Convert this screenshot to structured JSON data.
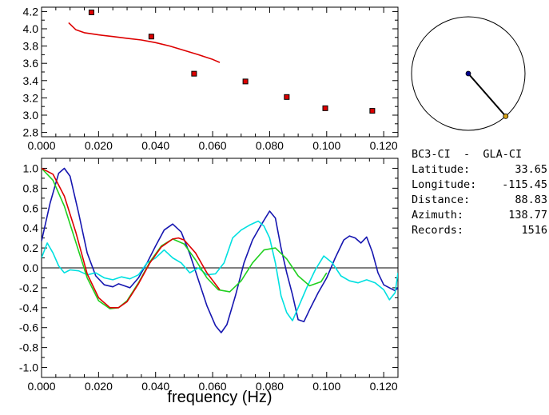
{
  "station": {
    "pair": "BC3-CI  -  GLA-CI",
    "rows": [
      {
        "label": "Latitude:",
        "value": "33.65"
      },
      {
        "label": "Longitude:",
        "value": "-115.45"
      },
      {
        "label": "Distance:",
        "value": "88.83"
      },
      {
        "label": "Azimuth:",
        "value": "138.77"
      },
      {
        "label": "Records:",
        "value": "1516"
      }
    ]
  },
  "compass": {
    "azimuth_deg": 138.77,
    "colors": {
      "center": "#00008b",
      "endpoint": "#d4a017"
    }
  },
  "chart_data": [
    {
      "type": "scatter",
      "xlim": [
        0.0,
        0.125
      ],
      "ylim": [
        2.75,
        4.25
      ],
      "xticks": [
        "0.000",
        "0.020",
        "0.040",
        "0.060",
        "0.080",
        "0.100",
        "0.120"
      ],
      "yticks": [
        "2.8",
        "3.0",
        "3.2",
        "3.4",
        "3.6",
        "3.8",
        "4.0",
        "4.2"
      ],
      "xtick_values": [
        0.0,
        0.02,
        0.04,
        0.06,
        0.08,
        0.1,
        0.12
      ],
      "ytick_values": [
        2.8,
        3.0,
        3.2,
        3.4,
        3.6,
        3.8,
        4.0,
        4.2
      ],
      "series": [
        {
          "kind": "points",
          "color": "#dd0000",
          "x": [
            0.0175,
            0.0385,
            0.0535,
            0.0715,
            0.086,
            0.0995,
            0.116
          ],
          "y": [
            4.19,
            3.91,
            3.48,
            3.39,
            3.21,
            3.08,
            3.05
          ]
        },
        {
          "kind": "line",
          "color": "#dd0000",
          "x": [
            0.0095,
            0.012,
            0.015,
            0.02,
            0.025,
            0.03,
            0.035,
            0.04,
            0.045,
            0.05,
            0.055,
            0.06,
            0.0625
          ],
          "y": [
            4.07,
            3.99,
            3.955,
            3.93,
            3.91,
            3.89,
            3.87,
            3.84,
            3.8,
            3.75,
            3.7,
            3.645,
            3.61
          ]
        }
      ]
    },
    {
      "type": "line",
      "xlabel": "frequency (Hz)",
      "xlim": [
        0.0,
        0.125
      ],
      "ylim": [
        -1.1,
        1.1
      ],
      "xticks": [
        "0.000",
        "0.020",
        "0.040",
        "0.060",
        "0.080",
        "0.100",
        "0.120"
      ],
      "yticks": [
        "1.0",
        "0.8",
        "0.6",
        "0.4",
        "0.2",
        "0.0",
        "-0.2",
        "-0.4",
        "-0.6",
        "-0.8",
        "-1.0"
      ],
      "xtick_values": [
        0.0,
        0.02,
        0.04,
        0.06,
        0.08,
        0.1,
        0.12
      ],
      "ytick_values": [
        1.0,
        0.8,
        0.6,
        0.4,
        0.2,
        0.0,
        -0.2,
        -0.4,
        -0.6,
        -0.8,
        -1.0
      ],
      "zero_line": true,
      "series": [
        {
          "color": "#1616b0",
          "x": [
            0.0,
            0.003,
            0.006,
            0.008,
            0.01,
            0.013,
            0.016,
            0.019,
            0.022,
            0.025,
            0.027,
            0.029,
            0.031,
            0.034,
            0.037,
            0.04,
            0.043,
            0.046,
            0.049,
            0.052,
            0.055,
            0.058,
            0.061,
            0.063,
            0.065,
            0.068,
            0.071,
            0.074,
            0.077,
            0.08,
            0.082,
            0.084,
            0.086,
            0.088,
            0.09,
            0.092,
            0.094,
            0.097,
            0.1,
            0.103,
            0.106,
            0.108,
            0.11,
            0.112,
            0.114,
            0.116,
            0.118,
            0.12,
            0.122,
            0.124,
            0.125
          ],
          "y": [
            0.27,
            0.65,
            0.95,
            1.0,
            0.92,
            0.55,
            0.15,
            -0.08,
            -0.17,
            -0.19,
            -0.16,
            -0.18,
            -0.2,
            -0.1,
            0.05,
            0.22,
            0.38,
            0.44,
            0.36,
            0.14,
            -0.12,
            -0.38,
            -0.58,
            -0.65,
            -0.57,
            -0.28,
            0.05,
            0.28,
            0.43,
            0.57,
            0.5,
            0.2,
            -0.05,
            -0.27,
            -0.52,
            -0.54,
            -0.42,
            -0.25,
            -0.1,
            0.1,
            0.28,
            0.32,
            0.3,
            0.25,
            0.31,
            0.16,
            -0.05,
            -0.17,
            -0.2,
            -0.23,
            -0.2
          ]
        },
        {
          "color": "#00e0e0",
          "x": [
            0.0,
            0.002,
            0.004,
            0.006,
            0.008,
            0.01,
            0.013,
            0.016,
            0.019,
            0.022,
            0.025,
            0.028,
            0.031,
            0.034,
            0.037,
            0.04,
            0.043,
            0.046,
            0.049,
            0.052,
            0.055,
            0.058,
            0.061,
            0.064,
            0.067,
            0.07,
            0.073,
            0.076,
            0.078,
            0.08,
            0.082,
            0.084,
            0.086,
            0.088,
            0.09,
            0.093,
            0.096,
            0.099,
            0.102,
            0.105,
            0.108,
            0.111,
            0.114,
            0.117,
            0.12,
            0.122,
            0.124,
            0.125
          ],
          "y": [
            0.1,
            0.25,
            0.15,
            0.02,
            -0.05,
            -0.02,
            -0.03,
            -0.07,
            -0.05,
            -0.1,
            -0.12,
            -0.09,
            -0.11,
            -0.07,
            0.05,
            0.1,
            0.18,
            0.1,
            0.05,
            -0.05,
            0.0,
            -0.07,
            -0.06,
            0.05,
            0.3,
            0.38,
            0.43,
            0.47,
            0.42,
            0.3,
            0.05,
            -0.28,
            -0.45,
            -0.53,
            -0.4,
            -0.2,
            -0.02,
            0.12,
            0.05,
            -0.08,
            -0.13,
            -0.15,
            -0.12,
            -0.15,
            -0.22,
            -0.32,
            -0.25,
            -0.05
          ]
        },
        {
          "color": "#20d020",
          "x": [
            0.0,
            0.004,
            0.008,
            0.012,
            0.016,
            0.02,
            0.024,
            0.027,
            0.03,
            0.034,
            0.038,
            0.042,
            0.046,
            0.05,
            0.054,
            0.058,
            0.062,
            0.066,
            0.07,
            0.074,
            0.078,
            0.082,
            0.086,
            0.09,
            0.094,
            0.098,
            0.1
          ],
          "y": [
            1.0,
            0.88,
            0.62,
            0.26,
            -0.1,
            -0.33,
            -0.41,
            -0.4,
            -0.33,
            -0.15,
            0.06,
            0.22,
            0.29,
            0.24,
            0.08,
            -0.1,
            -0.22,
            -0.24,
            -0.13,
            0.05,
            0.18,
            0.2,
            0.09,
            -0.08,
            -0.18,
            -0.14,
            -0.05
          ]
        },
        {
          "color": "#dd0000",
          "x": [
            0.0,
            0.004,
            0.008,
            0.012,
            0.016,
            0.02,
            0.024,
            0.027,
            0.03,
            0.034,
            0.038,
            0.042,
            0.046,
            0.048,
            0.05,
            0.054,
            0.058,
            0.0625
          ],
          "y": [
            1.0,
            0.94,
            0.72,
            0.36,
            -0.06,
            -0.3,
            -0.4,
            -0.4,
            -0.34,
            -0.16,
            0.05,
            0.21,
            0.29,
            0.3,
            0.28,
            0.15,
            -0.05,
            -0.22
          ]
        }
      ]
    }
  ]
}
